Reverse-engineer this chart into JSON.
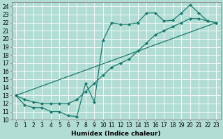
{
  "xlabel": "Humidex (Indice chaleur)",
  "bg_color": "#b2ddd4",
  "grid_color": "#ffffff",
  "line_color": "#1a7a6e",
  "xlim": [
    -0.5,
    23.5
  ],
  "ylim": [
    10,
    24.5
  ],
  "xticks": [
    0,
    1,
    2,
    3,
    4,
    5,
    6,
    7,
    8,
    9,
    10,
    11,
    12,
    13,
    14,
    15,
    16,
    17,
    18,
    19,
    20,
    21,
    22,
    23
  ],
  "yticks": [
    10,
    11,
    12,
    13,
    14,
    15,
    16,
    17,
    18,
    19,
    20,
    21,
    22,
    23,
    24
  ],
  "line1_x": [
    0,
    1,
    2,
    3,
    4,
    5,
    6,
    7,
    8,
    9,
    10,
    11,
    12,
    13,
    14,
    15,
    16,
    17,
    18,
    19,
    20,
    21,
    22,
    23
  ],
  "line1_y": [
    13.0,
    11.8,
    11.5,
    11.5,
    11.0,
    11.0,
    10.5,
    10.4,
    14.5,
    12.2,
    19.8,
    22.0,
    21.8,
    21.8,
    22.0,
    23.2,
    23.2,
    22.2,
    22.3,
    23.2,
    24.2,
    23.2,
    22.2,
    22.0
  ],
  "line2_x": [
    0,
    23
  ],
  "line2_y": [
    13.0,
    22.0
  ],
  "line3_x": [
    0,
    1,
    2,
    3,
    4,
    5,
    6,
    7,
    8,
    9,
    10,
    11,
    12,
    13,
    14,
    15,
    16,
    17,
    18,
    19,
    20,
    21,
    22,
    23
  ],
  "line3_y": [
    13.0,
    12.5,
    12.2,
    12.0,
    12.0,
    12.0,
    12.0,
    12.5,
    13.5,
    14.5,
    15.5,
    16.5,
    17.0,
    17.5,
    18.5,
    19.5,
    20.5,
    21.0,
    21.5,
    22.0,
    22.5,
    22.5,
    22.2,
    22.0
  ],
  "marker": "D",
  "markersize": 2.0,
  "linewidth": 0.9,
  "label_fontsize": 6.5,
  "tick_fontsize": 5.5
}
